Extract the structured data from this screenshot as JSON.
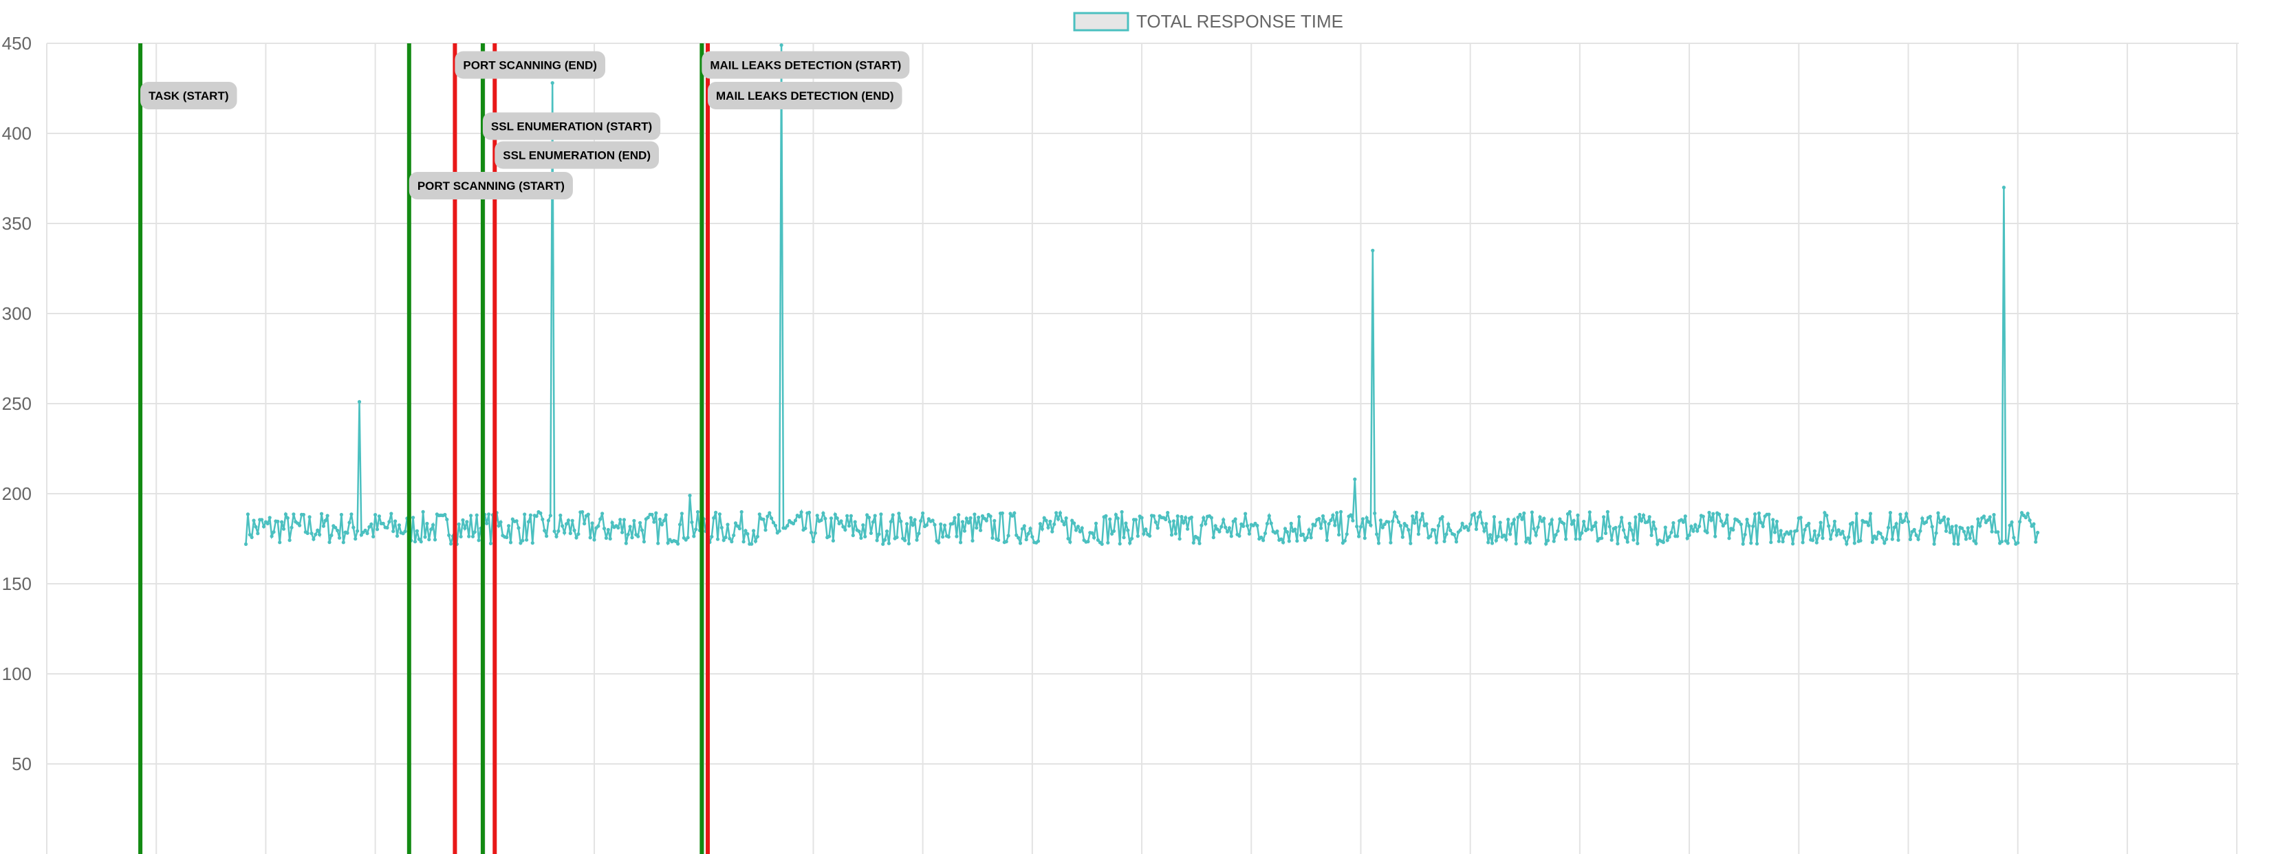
{
  "chart_data": {
    "type": "line",
    "title": "",
    "xlabel": "",
    "ylabel": "",
    "ylim": [
      0,
      450
    ],
    "yticks": [
      50,
      100,
      150,
      200,
      250,
      300,
      350,
      400,
      450
    ],
    "grid": true,
    "legend": "top-center",
    "colors": {
      "series": "#4bc0c0",
      "legend_fill": "#e6e6e6",
      "start_line": "#138a13",
      "end_line": "#e81818",
      "annotation_bg": "#cfcfcf",
      "grid": "#e3e3e3"
    },
    "series": [
      {
        "name": "TOTAL RESPONSE TIME",
        "x_range": [
          100,
          1000
        ],
        "noise_seed": 7,
        "baseline": 181,
        "spread": 18,
        "spikes": [
          {
            "x": 157,
            "y": 251
          },
          {
            "x": 254,
            "y": 428
          },
          {
            "x": 323,
            "y": 199
          },
          {
            "x": 369,
            "y": 449
          },
          {
            "x": 657,
            "y": 208
          },
          {
            "x": 666,
            "y": 335
          },
          {
            "x": 983,
            "y": 370
          }
        ]
      }
    ],
    "markers": [
      {
        "x": 47,
        "kind": "start",
        "label": "TASK (START)",
        "label_y": 421
      },
      {
        "x": 182,
        "kind": "start",
        "label": "PORT SCANNING (START)",
        "label_y": 371
      },
      {
        "x": 205,
        "kind": "end",
        "label": "PORT SCANNING (END)",
        "label_y": 438
      },
      {
        "x": 219,
        "kind": "start",
        "label": "SSL ENUMERATION (START)",
        "label_y": 404
      },
      {
        "x": 225,
        "kind": "end",
        "label": "SSL ENUMERATION (END)",
        "label_y": 388
      },
      {
        "x": 329,
        "kind": "start",
        "label": "MAIL LEAKS DETECTION (START)",
        "label_y": 438
      },
      {
        "x": 332,
        "kind": "end",
        "label": "MAIL LEAKS DETECTION (END)",
        "label_y": 421
      }
    ]
  }
}
